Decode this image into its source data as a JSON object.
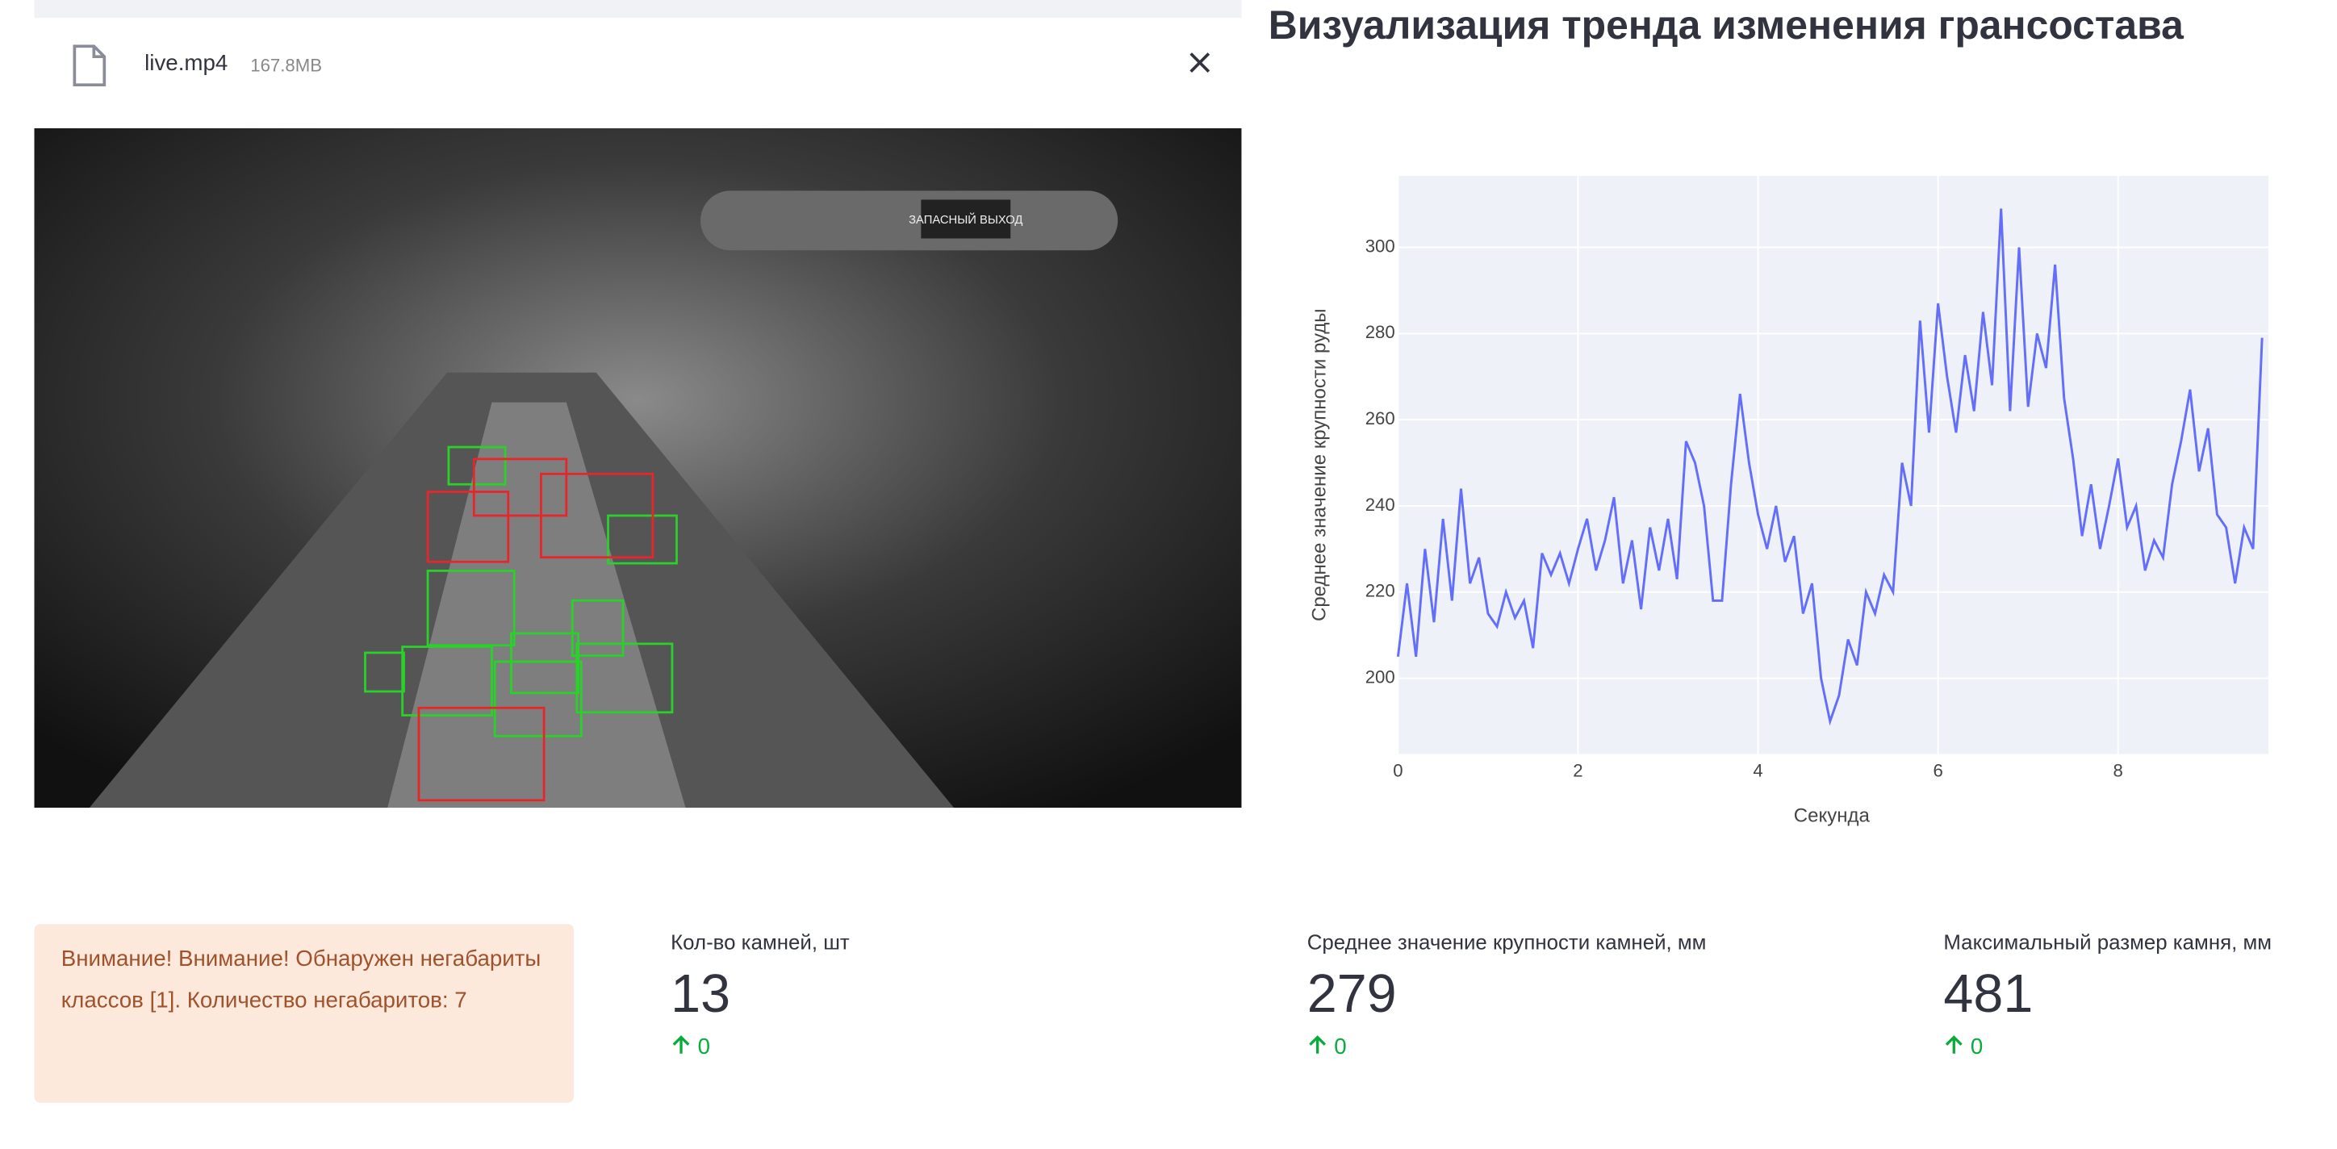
{
  "file": {
    "name": "live.mp4",
    "size": "167.8MB"
  },
  "video": {
    "sign": "ЗАПАСНЫЙ ВЫХОД"
  },
  "chart_title": "Визуализация тренда изменения грансостава",
  "chart_data": {
    "type": "line",
    "xlabel": "Секунда",
    "ylabel": "Среднее значение крупности руды",
    "x": [
      0,
      0.1,
      0.2,
      0.3,
      0.4,
      0.5,
      0.6,
      0.7,
      0.8,
      0.9,
      1.0,
      1.1,
      1.2,
      1.3,
      1.4,
      1.5,
      1.6,
      1.7,
      1.8,
      1.9,
      2.0,
      2.1,
      2.2,
      2.3,
      2.4,
      2.5,
      2.6,
      2.7,
      2.8,
      2.9,
      3.0,
      3.1,
      3.2,
      3.3,
      3.4,
      3.5,
      3.6,
      3.7,
      3.8,
      3.9,
      4.0,
      4.1,
      4.2,
      4.3,
      4.4,
      4.5,
      4.6,
      4.7,
      4.8,
      4.9,
      5.0,
      5.1,
      5.2,
      5.3,
      5.4,
      5.5,
      5.6,
      5.7,
      5.8,
      5.9,
      6.0,
      6.1,
      6.2,
      6.3,
      6.4,
      6.5,
      6.6,
      6.7,
      6.8,
      6.9,
      7.0,
      7.1,
      7.2,
      7.3,
      7.4,
      7.5,
      7.6,
      7.7,
      7.8,
      7.9,
      8.0,
      8.1,
      8.2,
      8.3,
      8.4,
      8.5,
      8.6,
      8.7,
      8.8,
      8.9,
      9.0,
      9.1,
      9.2,
      9.3,
      9.4,
      9.5,
      9.6
    ],
    "series": [
      {
        "color": "#636efa",
        "values": [
          205,
          222,
          205,
          230,
          213,
          237,
          218,
          244,
          222,
          228,
          215,
          212,
          220,
          214,
          218,
          207,
          229,
          224,
          229,
          222,
          230,
          237,
          225,
          232,
          242,
          222,
          232,
          216,
          235,
          225,
          237,
          223,
          255,
          250,
          240,
          218,
          218,
          245,
          266,
          250,
          238,
          230,
          240,
          227,
          233,
          215,
          222,
          200,
          190,
          196,
          209,
          203,
          220,
          215,
          224,
          220,
          250,
          240,
          283,
          257,
          287,
          270,
          257,
          275,
          262,
          285,
          268,
          309,
          262,
          300,
          263,
          280,
          272,
          296,
          265,
          251,
          233,
          245,
          230,
          240,
          251,
          235,
          240,
          225,
          232,
          228,
          245,
          255,
          267,
          248,
          258,
          238,
          235,
          222,
          235,
          230,
          279
        ]
      }
    ],
    "xlim": [
      0,
      9.67
    ],
    "ylim": [
      182.4,
      316.6
    ],
    "xticks": [
      0,
      2,
      4,
      6,
      8
    ],
    "yticks": [
      200,
      220,
      240,
      260,
      280,
      300
    ],
    "grid": true
  },
  "alert": "Внимание! Внимание! Обнаружен негабариты классов [1]. Количество негабаритов: 7",
  "metrics": [
    {
      "label": "Кол-во камней, шт",
      "value": 13,
      "delta": 0
    },
    {
      "label": "Среднее значение крупности камней, мм",
      "value": 279,
      "delta": 0
    },
    {
      "label": "Максимальный размер камня, мм",
      "value": 481,
      "delta": 0
    }
  ]
}
